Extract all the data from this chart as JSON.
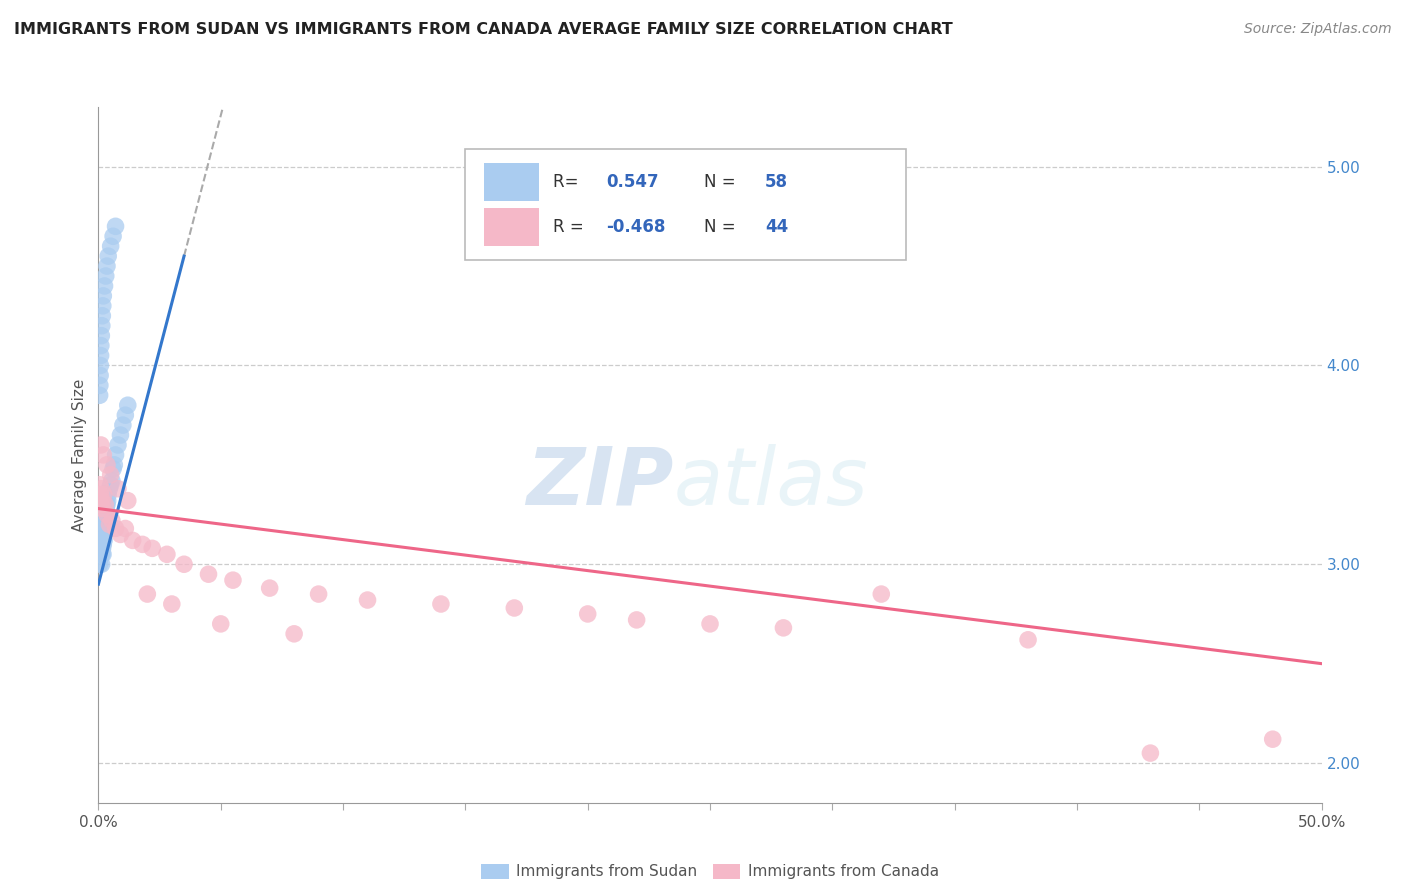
{
  "title": "IMMIGRANTS FROM SUDAN VS IMMIGRANTS FROM CANADA AVERAGE FAMILY SIZE CORRELATION CHART",
  "source": "Source: ZipAtlas.com",
  "ylabel": "Average Family Size",
  "xlim": [
    0.0,
    50.0
  ],
  "ylim": [
    1.8,
    5.3
  ],
  "yticks_right": [
    2.0,
    3.0,
    4.0,
    5.0
  ],
  "sudan_R": 0.547,
  "sudan_N": 58,
  "canada_R": -0.468,
  "canada_N": 44,
  "sudan_color": "#aaccf0",
  "canada_color": "#f5b8c8",
  "sudan_line_color": "#3377cc",
  "canada_line_color": "#ee6688",
  "sudan_line_x": [
    0.0,
    3.5
  ],
  "sudan_line_y": [
    2.9,
    4.55
  ],
  "canada_line_x": [
    0.0,
    50.0
  ],
  "canada_line_y": [
    3.28,
    2.5
  ],
  "watermark_zip": "ZIP",
  "watermark_atlas": "atlas",
  "watermark_color": "#d0e4f5",
  "sudan_scatter_x": [
    0.05,
    0.06,
    0.07,
    0.08,
    0.09,
    0.1,
    0.11,
    0.12,
    0.13,
    0.14,
    0.15,
    0.16,
    0.17,
    0.18,
    0.19,
    0.2,
    0.21,
    0.22,
    0.23,
    0.24,
    0.25,
    0.26,
    0.27,
    0.28,
    0.3,
    0.32,
    0.35,
    0.38,
    0.4,
    0.45,
    0.5,
    0.55,
    0.6,
    0.65,
    0.7,
    0.8,
    0.9,
    1.0,
    1.1,
    1.2,
    0.05,
    0.06,
    0.07,
    0.08,
    0.09,
    0.1,
    0.12,
    0.14,
    0.16,
    0.18,
    0.2,
    0.25,
    0.3,
    0.35,
    0.4,
    0.5,
    0.6,
    0.7
  ],
  "sudan_scatter_y": [
    3.0,
    3.05,
    3.1,
    3.05,
    3.08,
    3.12,
    3.05,
    3.08,
    3.0,
    3.1,
    3.05,
    3.12,
    3.08,
    3.1,
    3.05,
    3.1,
    3.12,
    3.15,
    3.12,
    3.18,
    3.2,
    3.18,
    3.22,
    3.2,
    3.25,
    3.28,
    3.3,
    3.32,
    3.35,
    3.38,
    3.4,
    3.42,
    3.48,
    3.5,
    3.55,
    3.6,
    3.65,
    3.7,
    3.75,
    3.8,
    3.85,
    3.9,
    3.95,
    4.0,
    4.05,
    4.1,
    4.15,
    4.2,
    4.25,
    4.3,
    4.35,
    4.4,
    4.45,
    4.5,
    4.55,
    4.6,
    4.65,
    4.7
  ],
  "canada_scatter_x": [
    0.05,
    0.08,
    0.1,
    0.12,
    0.15,
    0.18,
    0.22,
    0.28,
    0.35,
    0.45,
    0.55,
    0.7,
    0.9,
    1.1,
    1.4,
    1.8,
    2.2,
    2.8,
    3.5,
    4.5,
    5.5,
    7.0,
    9.0,
    11.0,
    14.0,
    17.0,
    20.0,
    22.0,
    25.0,
    28.0,
    0.1,
    0.2,
    0.35,
    0.5,
    0.8,
    1.2,
    2.0,
    3.0,
    5.0,
    8.0,
    32.0,
    38.0,
    43.0,
    48.0
  ],
  "canada_scatter_y": [
    3.4,
    3.35,
    3.3,
    3.38,
    3.32,
    3.28,
    3.35,
    3.3,
    3.25,
    3.2,
    3.22,
    3.18,
    3.15,
    3.18,
    3.12,
    3.1,
    3.08,
    3.05,
    3.0,
    2.95,
    2.92,
    2.88,
    2.85,
    2.82,
    2.8,
    2.78,
    2.75,
    2.72,
    2.7,
    2.68,
    3.6,
    3.55,
    3.5,
    3.45,
    3.38,
    3.32,
    2.85,
    2.8,
    2.7,
    2.65,
    2.85,
    2.62,
    2.05,
    2.12
  ]
}
